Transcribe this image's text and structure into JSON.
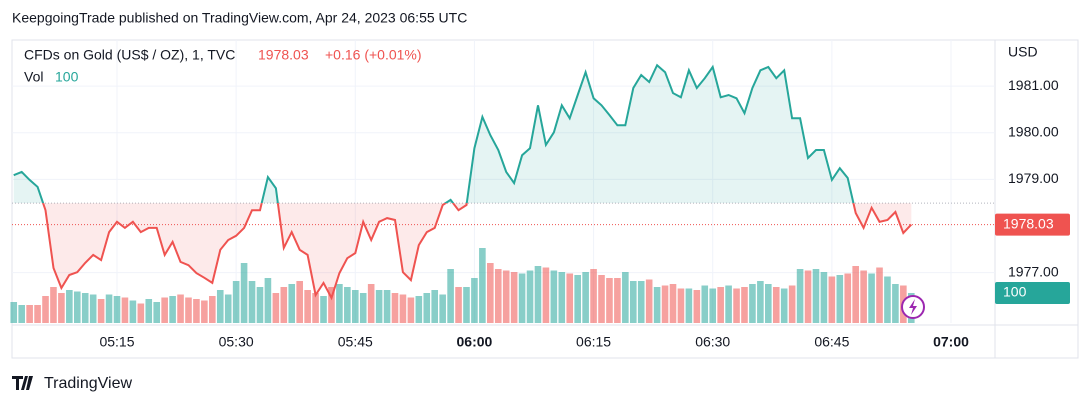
{
  "header": "KeepgoingTrade published on TradingView.com, Apr 24, 2023 06:55 UTC",
  "footer": "TradingView",
  "chart_data": {
    "type": "baseline",
    "title": "CFDs on Gold (US$ / OZ), 1, TVC",
    "last_price": 1978.03,
    "change": "+0.16 (+0.01%)",
    "volume_label": "Vol",
    "last_volume": 100,
    "currency": "USD",
    "up_color": "#26a69a",
    "down_color": "#ef5350",
    "baseline": 1978.49,
    "x": [
      "05:02",
      "05:03",
      "05:04",
      "05:05",
      "05:06",
      "05:07",
      "05:08",
      "05:09",
      "05:10",
      "05:11",
      "05:12",
      "05:13",
      "05:14",
      "05:15",
      "05:16",
      "05:17",
      "05:18",
      "05:19",
      "05:20",
      "05:21",
      "05:22",
      "05:23",
      "05:24",
      "05:25",
      "05:26",
      "05:27",
      "05:28",
      "05:29",
      "05:30",
      "05:31",
      "05:32",
      "05:33",
      "05:34",
      "05:35",
      "05:36",
      "05:37",
      "05:38",
      "05:39",
      "05:40",
      "05:41",
      "05:42",
      "05:43",
      "05:44",
      "05:45",
      "05:46",
      "05:47",
      "05:48",
      "05:49",
      "05:50",
      "05:51",
      "05:52",
      "05:53",
      "05:54",
      "05:55",
      "05:56",
      "05:57",
      "05:58",
      "05:59",
      "06:00",
      "06:01",
      "06:02",
      "06:03",
      "06:04",
      "06:05",
      "06:06",
      "06:07",
      "06:08",
      "06:09",
      "06:10",
      "06:11",
      "06:12",
      "06:13",
      "06:14",
      "06:15",
      "06:16",
      "06:17",
      "06:18",
      "06:19",
      "06:20",
      "06:21",
      "06:22",
      "06:23",
      "06:24",
      "06:25",
      "06:26",
      "06:27",
      "06:28",
      "06:29",
      "06:30",
      "06:31",
      "06:32",
      "06:33",
      "06:34",
      "06:35",
      "06:36",
      "06:37",
      "06:38",
      "06:39",
      "06:40",
      "06:41",
      "06:42",
      "06:43",
      "06:44",
      "06:45",
      "06:46",
      "06:47",
      "06:48",
      "06:49",
      "06:50",
      "06:51",
      "06:52",
      "06:53",
      "06:54",
      "06:55"
    ],
    "series": [
      {
        "name": "CFDs on Gold (US$ / OZ), 1, TVC",
        "values": [
          1979.09,
          1979.16,
          1978.99,
          1978.84,
          1978.34,
          1977.1,
          1976.67,
          1976.95,
          1977.01,
          1977.21,
          1977.38,
          1977.27,
          1977.87,
          1978.09,
          1977.96,
          1978.09,
          1977.87,
          1977.96,
          1977.96,
          1977.38,
          1977.66,
          1977.23,
          1977.16,
          1976.99,
          1976.89,
          1976.78,
          1977.49,
          1977.7,
          1977.79,
          1977.96,
          1978.34,
          1978.34,
          1979.05,
          1978.81,
          1977.53,
          1977.87,
          1977.49,
          1977.38,
          1976.52,
          1976.78,
          1976.46,
          1976.99,
          1977.31,
          1977.42,
          1978.09,
          1977.7,
          1978.09,
          1978.17,
          1978.13,
          1977.01,
          1976.84,
          1977.59,
          1977.87,
          1977.96,
          1978.45,
          1978.56,
          1978.34,
          1978.45,
          1979.67,
          1980.34,
          1979.95,
          1979.63,
          1979.16,
          1978.92,
          1979.52,
          1979.67,
          1980.59,
          1979.74,
          1980.01,
          1980.59,
          1980.31,
          1980.81,
          1981.3,
          1980.74,
          1980.59,
          1980.38,
          1980.16,
          1980.16,
          1980.96,
          1981.24,
          1981.09,
          1981.45,
          1981.3,
          1980.85,
          1980.76,
          1981.34,
          1980.96,
          1981.17,
          1981.41,
          1980.76,
          1980.81,
          1980.74,
          1980.42,
          1980.96,
          1981.34,
          1981.41,
          1981.17,
          1981.34,
          1980.31,
          1980.31,
          1979.46,
          1979.63,
          1979.63,
          1978.99,
          1979.24,
          1979.03,
          1978.28,
          1977.96,
          1978.39,
          1978.09,
          1978.13,
          1978.3,
          1977.85,
          1978.03
        ]
      },
      {
        "name": "Vol",
        "values": [
          70,
          60,
          60,
          60,
          90,
          120,
          100,
          110,
          105,
          100,
          95,
          80,
          95,
          90,
          85,
          75,
          65,
          80,
          70,
          85,
          90,
          95,
          85,
          80,
          75,
          90,
          110,
          95,
          140,
          200,
          140,
          120,
          150,
          100,
          120,
          130,
          140,
          110,
          100,
          90,
          120,
          130,
          120,
          110,
          100,
          130,
          110,
          110,
          100,
          95,
          85,
          90,
          100,
          110,
          95,
          180,
          120,
          120,
          150,
          250,
          200,
          180,
          175,
          170,
          165,
          175,
          190,
          185,
          175,
          170,
          165,
          160,
          170,
          180,
          160,
          150,
          150,
          170,
          140,
          140,
          145,
          120,
          125,
          130,
          115,
          115,
          110,
          125,
          115,
          120,
          125,
          115,
          120,
          130,
          140,
          130,
          120,
          115,
          125,
          180,
          175,
          180,
          170,
          155,
          160,
          165,
          190,
          175,
          165,
          185,
          155,
          130,
          125,
          100
        ]
      }
    ],
    "ylim": [
      1975.92,
      1981.99
    ],
    "yticks": [
      {
        "value": 1977,
        "label": "1977.00"
      },
      {
        "value": 1979,
        "label": "1979.00"
      },
      {
        "value": 1980,
        "label": "1980.00"
      },
      {
        "value": 1981,
        "label": "1981.00"
      }
    ],
    "xticks": [
      "05:15",
      "05:30",
      "05:45",
      "06:00",
      "06:15",
      "06:30",
      "06:45",
      "07:00"
    ]
  }
}
